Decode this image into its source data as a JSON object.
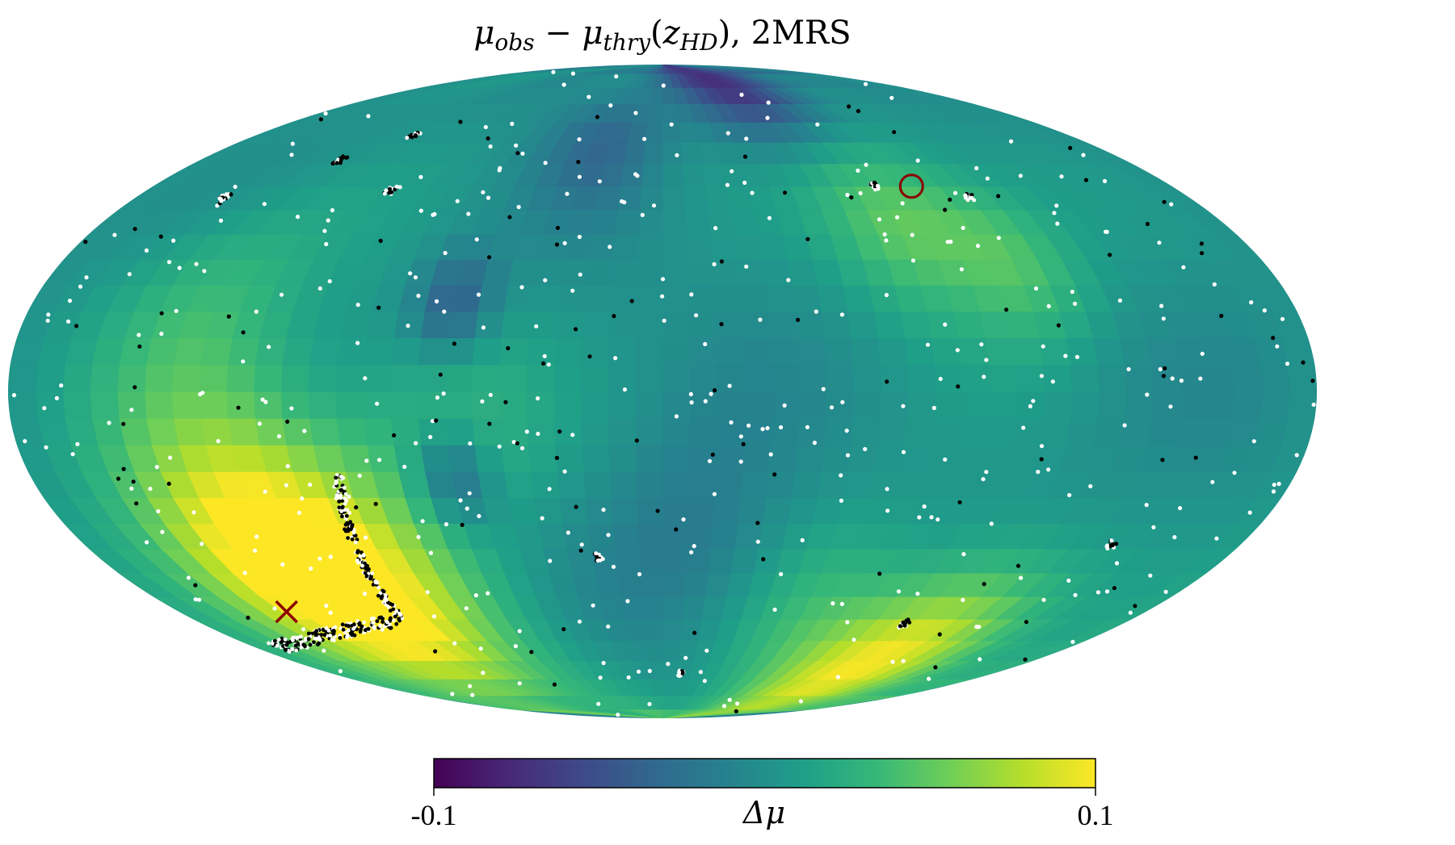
{
  "chart_data": {
    "type": "heatmap",
    "projection": "Mollweide",
    "title": "μobs − μthry(zHD), 2MRS",
    "colorbar": {
      "label": "Δμ",
      "min": -0.1,
      "max": 0.1,
      "min_label": "-0.1",
      "max_label": "0.1",
      "colormap": "viridis",
      "orientation": "horizontal",
      "placement": "bottom"
    },
    "field_description": "HEALPix map of residual Δμ",
    "markers": [
      {
        "symbol": "x",
        "color": "#8b0000",
        "lon_deg": 140,
        "lat_deg": -52
      },
      {
        "symbol": "circle",
        "color": "#8b0000",
        "lon_deg": -88,
        "lat_deg": 48
      }
    ],
    "point_series": [
      {
        "color": "#ffffff"
      },
      {
        "color": "#000000"
      }
    ],
    "colors": {
      "viridis": [
        "#440154",
        "#482878",
        "#3e4989",
        "#31688e",
        "#26828e",
        "#1f9e89",
        "#35b779",
        "#6ece58",
        "#b5de2b",
        "#fde725"
      ]
    }
  }
}
